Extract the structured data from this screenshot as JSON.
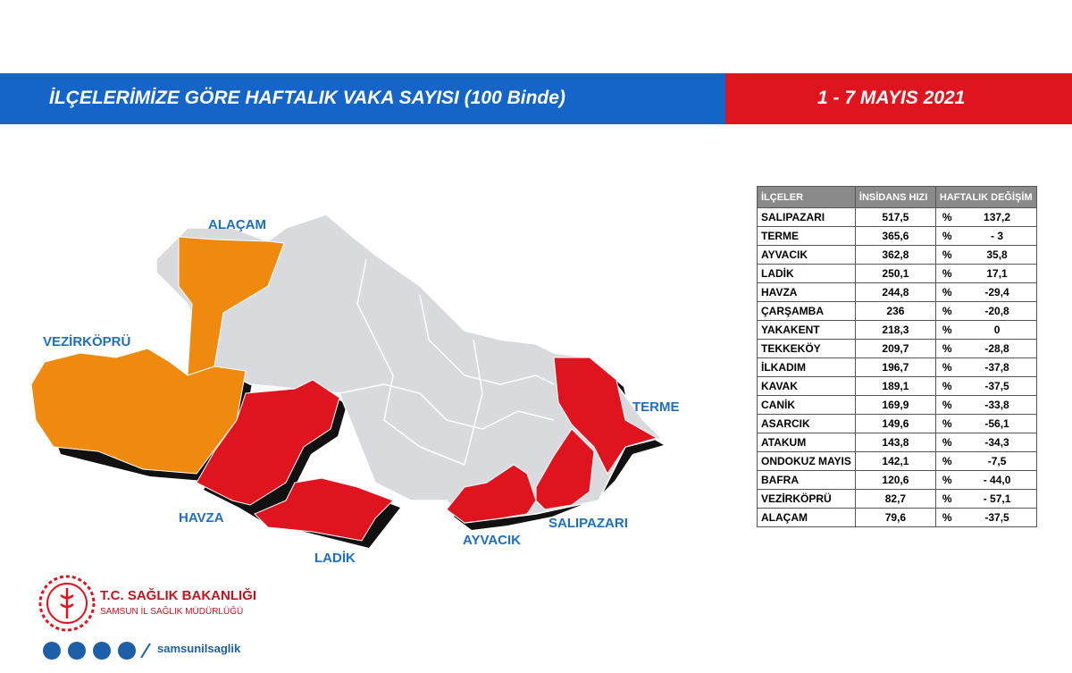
{
  "header": {
    "title": "İLÇELERİMİZE GÖRE HAFTALIK VAKA SAYISI (100 Binde)",
    "date": "1 - 7 MAYIS 2021"
  },
  "map": {
    "labels": [
      "ALAÇAM",
      "VEZİRKÖPRÜ",
      "HAVZA",
      "LADİK",
      "AYVACIK",
      "SALIPAZARI",
      "TERME"
    ]
  },
  "table": {
    "columns": [
      "İLÇELER",
      "İNSİDANS HIZI",
      "HAFTALIK DEĞİŞİM"
    ],
    "rows": [
      [
        "SALIPAZARI",
        "517,5",
        "%",
        "137,2"
      ],
      [
        "TERME",
        "365,6",
        "%",
        "- 3"
      ],
      [
        "AYVACIK",
        "362,8",
        "%",
        "35,8"
      ],
      [
        "LADİK",
        "250,1",
        "%",
        "17,1"
      ],
      [
        "HAVZA",
        "244,8",
        "%",
        "-29,4"
      ],
      [
        "ÇARŞAMBA",
        "236",
        "%",
        "-20,8"
      ],
      [
        "YAKAKENT",
        "218,3",
        "%",
        "0"
      ],
      [
        "TEKKEKÖY",
        "209,7",
        "%",
        "-28,8"
      ],
      [
        "İLKADIM",
        "196,7",
        "%",
        "-37,8"
      ],
      [
        "KAVAK",
        "189,1",
        "%",
        "-37,5"
      ],
      [
        "CANİK",
        "169,9",
        "%",
        "-33,8"
      ],
      [
        "ASARCIK",
        "149,6",
        "%",
        "-56,1"
      ],
      [
        "ATAKUM",
        "143,8",
        "%",
        "-34,3"
      ],
      [
        "ONDOKUZ MAYIS",
        "142,1",
        "%",
        "-7,5"
      ],
      [
        "BAFRA",
        "120,6",
        "%",
        "- 44,0"
      ],
      [
        "VEZİRKÖPRÜ",
        "82,7",
        "%",
        "- 57,1"
      ],
      [
        "ALAÇAM",
        "79,6",
        "%",
        "-37,5"
      ]
    ]
  },
  "footer": {
    "org": "T.C. SAĞLIK BAKANLIĞI",
    "suborg": "SAMSUN İL SAĞLIK MÜDÜRLÜĞÜ",
    "handle": "samsunilsaglik"
  }
}
